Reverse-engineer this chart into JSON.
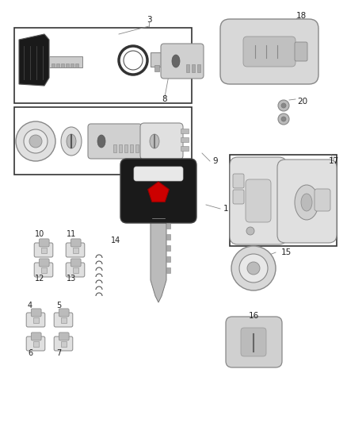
{
  "background_color": "#ffffff",
  "fig_width": 4.38,
  "fig_height": 5.33,
  "dpi": 100,
  "line_color": "#333333",
  "text_color": "#222222",
  "gray_light": "#e0e0e0",
  "gray_mid": "#bbbbbb",
  "gray_dark": "#888888",
  "black": "#1a1a1a"
}
